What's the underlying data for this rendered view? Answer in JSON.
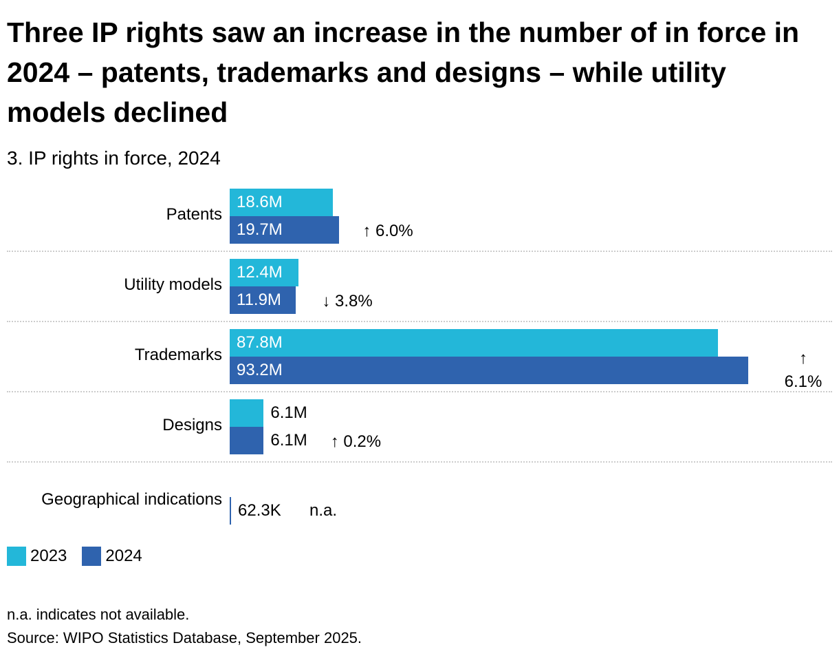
{
  "title": "Three IP rights saw an increase in the number of in force in 2024 – patents, trademarks and designs – while utility models declined",
  "subtitle": "3. IP rights in force, 2024",
  "chart_data": {
    "type": "bar",
    "orientation": "horizontal",
    "unit": "millions",
    "categories": [
      "Patents",
      "Utility models",
      "Trademarks",
      "Designs",
      "Geographical indications"
    ],
    "series": [
      {
        "name": "2023",
        "color": "#23b7d9",
        "values": [
          18.6,
          12.4,
          87.8,
          6.1,
          null
        ],
        "labels": [
          "18.6M",
          "12.4M",
          "87.8M",
          "6.1M",
          ""
        ]
      },
      {
        "name": "2024",
        "color": "#2f63ae",
        "values": [
          19.7,
          11.9,
          93.2,
          6.1,
          0.0623
        ],
        "labels": [
          "19.7M",
          "11.9M",
          "93.2M",
          "6.1M",
          "62.3K"
        ]
      }
    ],
    "changes": [
      "↑ 6.0%",
      "↓ 3.8%",
      "↑ 6.1%",
      "↑ 0.2%",
      "n.a."
    ],
    "xlim": [
      0,
      93.2
    ],
    "legend_position": "bottom-left",
    "grid": false
  },
  "notes": [
    "n.a. indicates not available.",
    "Source: WIPO Statistics Database, September 2025."
  ]
}
